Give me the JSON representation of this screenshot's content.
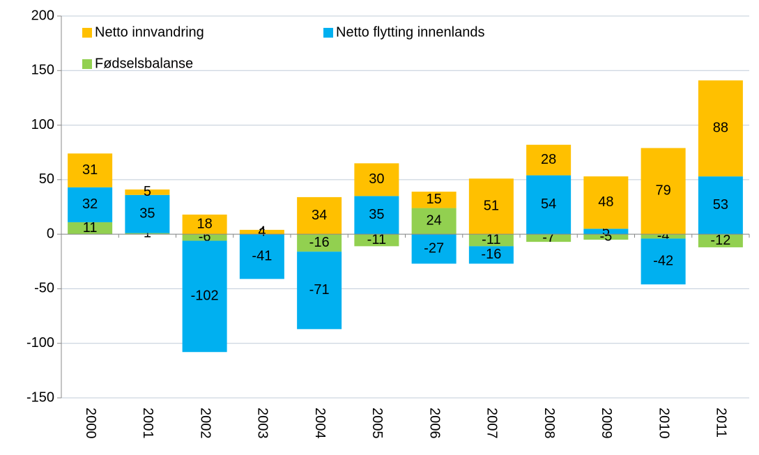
{
  "chart_data": {
    "type": "stacked_bar",
    "categories": [
      "2000",
      "2001",
      "2002",
      "2003",
      "2004",
      "2005",
      "2006",
      "2007",
      "2008",
      "2009",
      "2010",
      "2011"
    ],
    "series": [
      {
        "name": "Fødselsbalanse",
        "color": "#92D050",
        "values": [
          11,
          1,
          -6,
          0,
          -16,
          -11,
          24,
          -11,
          -7,
          -5,
          -4,
          -12
        ]
      },
      {
        "name": "Netto flytting innenlands",
        "color": "#00B0F0",
        "values": [
          32,
          35,
          -102,
          -41,
          -71,
          35,
          -27,
          -16,
          54,
          5,
          -42,
          53
        ]
      },
      {
        "name": "Netto innvandring",
        "color": "#FFC000",
        "values": [
          31,
          5,
          18,
          4,
          34,
          30,
          15,
          51,
          28,
          48,
          79,
          88
        ]
      }
    ],
    "ylim": [
      -150,
      200
    ],
    "yticks": [
      -150,
      -100,
      -50,
      0,
      50,
      100,
      150,
      200
    ],
    "grid": true,
    "legend": "upper left"
  }
}
